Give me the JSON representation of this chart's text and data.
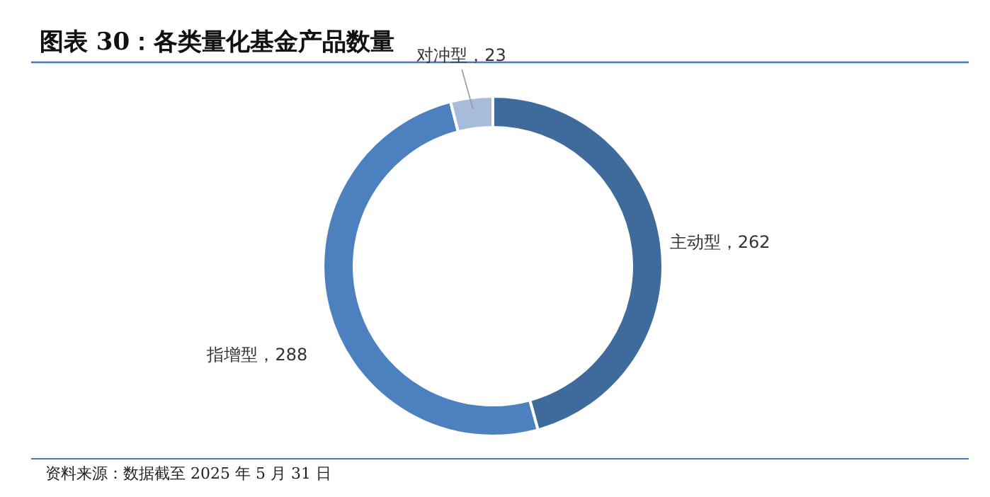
{
  "chart_data": {
    "type": "donut",
    "title": "图表 30：各类量化基金产品数量",
    "categories": [
      "主动型",
      "指增型",
      "对冲型"
    ],
    "values": [
      262,
      288,
      23
    ],
    "colors": [
      "#3f6a9c",
      "#4d80bf",
      "#a8bbda"
    ],
    "value_labels": [
      "，262",
      "，288",
      "，23"
    ],
    "annotations": [
      "资料来源：数据截至 2025 年 5 月 31 日"
    ]
  }
}
